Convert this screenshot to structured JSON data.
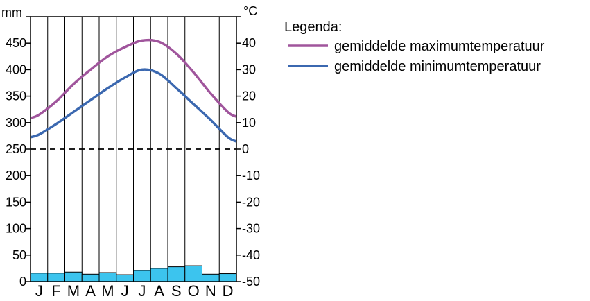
{
  "chart_data": {
    "type": "climate-chart",
    "title": "",
    "months": [
      "J",
      "F",
      "M",
      "A",
      "M",
      "J",
      "J",
      "A",
      "S",
      "O",
      "N",
      "D"
    ],
    "precipitation_axis": {
      "unit": "mm",
      "ticks": [
        0,
        50,
        100,
        150,
        200,
        250,
        300,
        350,
        400,
        450
      ],
      "range": [
        0,
        500
      ]
    },
    "temperature_axis": {
      "unit": "°C",
      "ticks": [
        -50,
        -40,
        -30,
        -20,
        -10,
        0,
        10,
        20,
        30,
        40
      ],
      "range": [
        -50,
        50
      ]
    },
    "zero_reference": {
      "temperature": 0,
      "style": "dashed"
    },
    "precipitation": {
      "type": "bar",
      "color": "#3CC4EE",
      "values": [
        16,
        16,
        18,
        14,
        17,
        13,
        21,
        25,
        28,
        30,
        14,
        15
      ]
    },
    "series": [
      {
        "name": "gemiddelde maximumtemperatuur",
        "type": "line",
        "color": "#A0559C",
        "values": [
          13,
          18,
          24.5,
          30,
          35,
          38.5,
          41,
          40.5,
          36,
          29,
          21,
          14
        ]
      },
      {
        "name": "gemiddelde minimumtemperatuur",
        "type": "line",
        "color": "#3B68B0",
        "values": [
          5.5,
          9.5,
          14,
          18.5,
          23,
          27,
          30,
          28.5,
          23,
          17,
          11,
          4.5
        ]
      }
    ],
    "legend": {
      "title": "Legenda:",
      "placement": "top-right",
      "entries": [
        "gemiddelde maximumtemperatuur",
        "gemiddelde minimumtemperatuur"
      ]
    },
    "grid": true
  }
}
